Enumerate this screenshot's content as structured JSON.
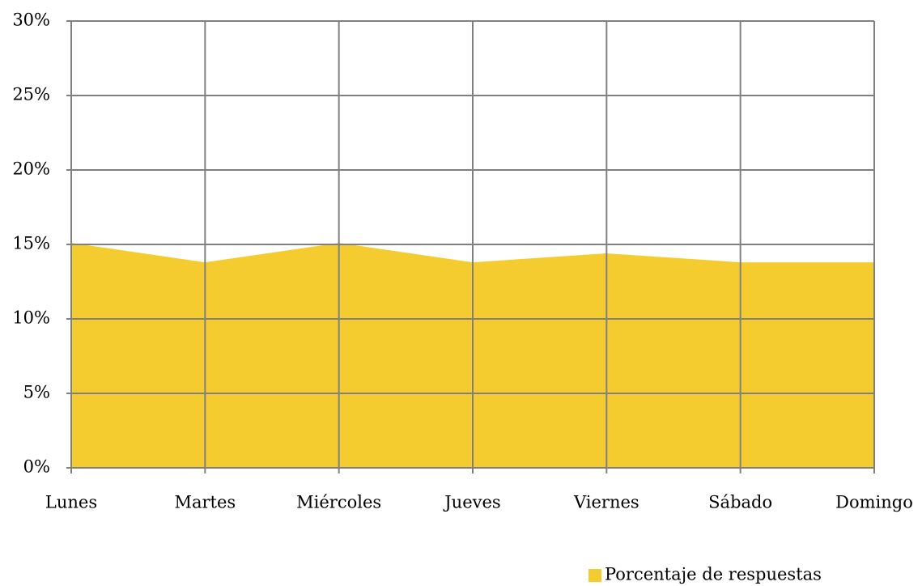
{
  "chart_data": {
    "type": "area",
    "categories": [
      "Lunes",
      "Martes",
      "Miércoles",
      "Jueves",
      "Viernes",
      "Sábado",
      "Domingo"
    ],
    "series": [
      {
        "name": "Porcentaje de respuestas",
        "color": "#f4cc30",
        "values": [
          15.1,
          13.8,
          15.1,
          13.8,
          14.4,
          13.8,
          13.8
        ]
      }
    ],
    "ylim": [
      0,
      30
    ],
    "yticks": [
      {
        "value": 0,
        "label": "0%"
      },
      {
        "value": 5,
        "label": "5%"
      },
      {
        "value": 10,
        "label": "10%"
      },
      {
        "value": 15,
        "label": "15%"
      },
      {
        "value": 20,
        "label": "20%"
      },
      {
        "value": 25,
        "label": "25%"
      },
      {
        "value": 30,
        "label": "30%"
      }
    ],
    "grid": true,
    "legend": "bottom-right"
  }
}
